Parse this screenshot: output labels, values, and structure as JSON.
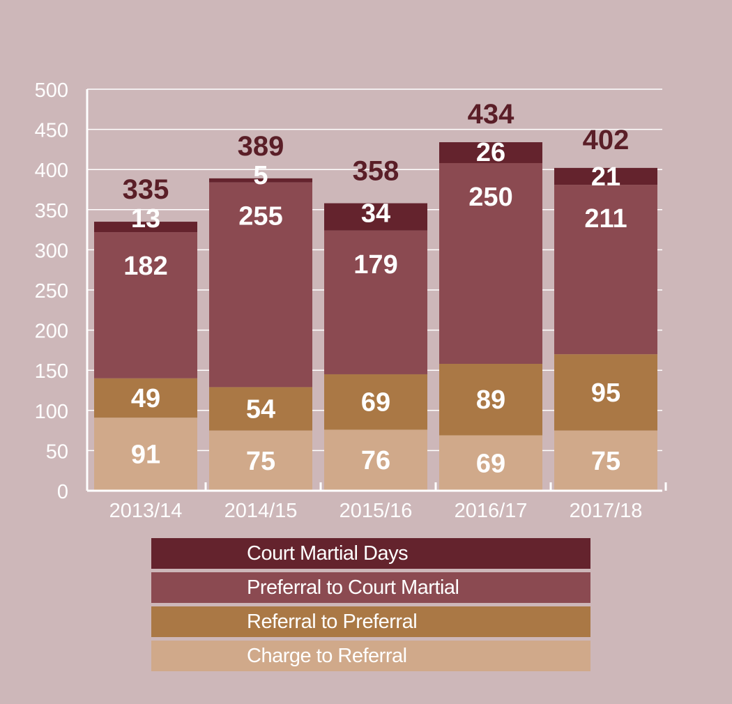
{
  "chart_data": {
    "type": "bar",
    "stacked": true,
    "categories": [
      "2013/14",
      "2014/15",
      "2015/16",
      "2016/17",
      "2017/18"
    ],
    "series": [
      {
        "name": "Charge to Referral",
        "color": "#d0a98a",
        "values": [
          91,
          75,
          76,
          69,
          75
        ]
      },
      {
        "name": "Referral to Preferral",
        "color": "#aa7845",
        "values": [
          49,
          54,
          69,
          89,
          95
        ]
      },
      {
        "name": "Preferral to Court Martial",
        "color": "#8b4a51",
        "values": [
          182,
          255,
          179,
          250,
          211
        ]
      },
      {
        "name": "Court Martial Days",
        "color": "#64232d",
        "values": [
          13,
          5,
          34,
          26,
          21
        ]
      }
    ],
    "totals": [
      335,
      389,
      358,
      434,
      402
    ],
    "ylim": [
      0,
      500
    ],
    "yticks": [
      0,
      50,
      100,
      150,
      200,
      250,
      300,
      350,
      400,
      450,
      500
    ],
    "grid": true,
    "legend_placement": "bottom"
  },
  "legend": [
    {
      "label": "Court Martial Days",
      "color": "#64232d"
    },
    {
      "label": "Preferral to Court Martial",
      "color": "#8b4a51"
    },
    {
      "label": "Referral to Preferral",
      "color": "#aa7845"
    },
    {
      "label": "Charge to Referral",
      "color": "#d0a98a"
    }
  ],
  "colors": {
    "background": "#cdb7b9",
    "grid": "#ffffff",
    "axis_text": "#ffffff",
    "total_label": "#5a1e27"
  }
}
